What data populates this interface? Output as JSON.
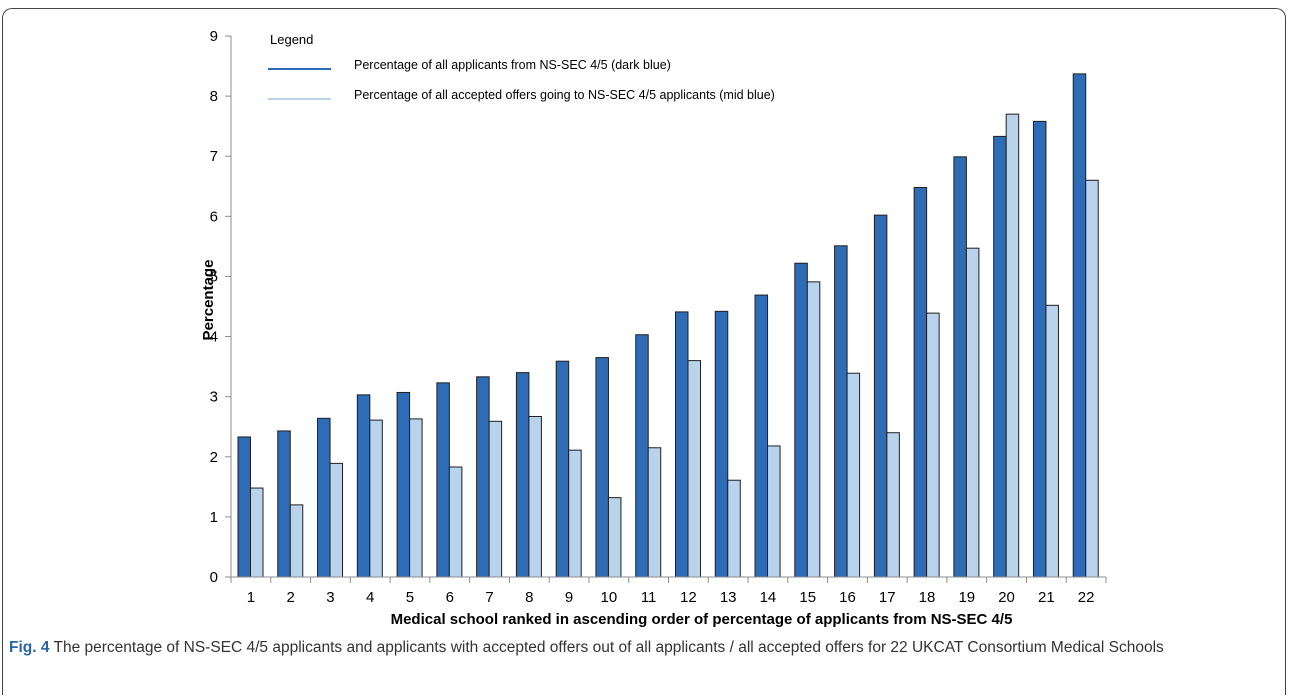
{
  "chart_data": {
    "type": "bar",
    "categories": [
      "1",
      "2",
      "3",
      "4",
      "5",
      "6",
      "7",
      "8",
      "9",
      "10",
      "11",
      "12",
      "13",
      "14",
      "15",
      "16",
      "17",
      "18",
      "19",
      "20",
      "21",
      "22"
    ],
    "series": [
      {
        "name": "Percentage of all applicants from NS-SEC 4/5 (dark blue)",
        "color": "#2e6db5",
        "values": [
          2.33,
          2.43,
          2.64,
          3.03,
          3.07,
          3.23,
          3.33,
          3.4,
          3.59,
          3.65,
          4.03,
          4.41,
          4.42,
          4.69,
          5.22,
          5.51,
          6.02,
          6.48,
          6.99,
          7.33,
          7.58,
          8.37
        ]
      },
      {
        "name": "Percentage of all accepted offers going to NS-SEC 4/5 applicants (mid blue)",
        "color": "#b9d3ec",
        "values": [
          1.48,
          1.2,
          1.89,
          2.61,
          2.63,
          1.83,
          2.59,
          2.67,
          2.11,
          1.32,
          2.15,
          3.6,
          1.61,
          2.18,
          4.91,
          3.39,
          2.4,
          4.39,
          5.47,
          7.7,
          4.52,
          6.6
        ]
      }
    ],
    "legend_title": "Legend",
    "legend_position": "top-left",
    "xlabel": "Medical school ranked in ascending order of percentage of applicants from NS-SEC 4/5",
    "ylabel": "Percentage",
    "ylim": [
      0,
      9
    ],
    "yticks": [
      "0",
      "1",
      "2",
      "3",
      "4",
      "5",
      "6",
      "7",
      "8",
      "9"
    ],
    "grid": false
  },
  "caption": {
    "label": "Fig. 4",
    "text": " The percentage of NS-SEC 4/5 applicants and applicants with accepted offers out of all applicants / all accepted offers for 22 UKCAT Consortium Medical Schools"
  }
}
